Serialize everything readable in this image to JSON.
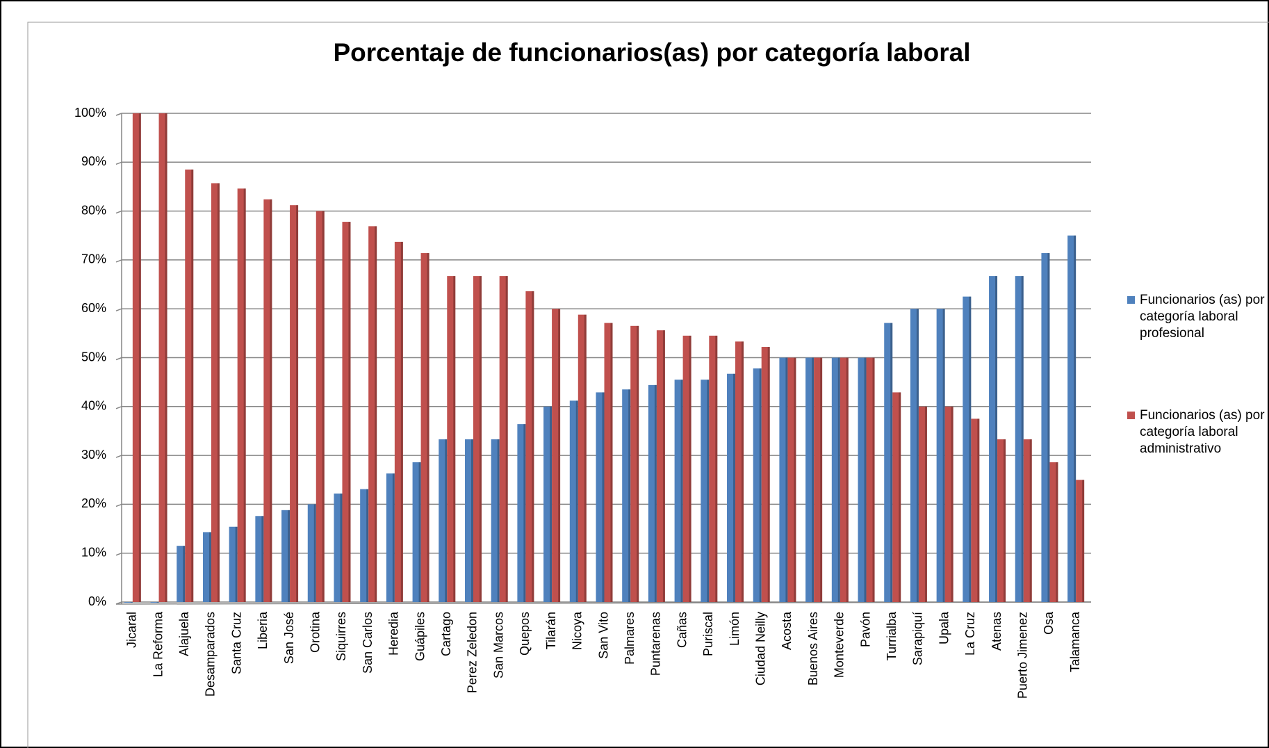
{
  "chart_data": {
    "type": "bar",
    "title": "Porcentaje de funcionarios(as) por categoría laboral",
    "categories": [
      "Jicaral",
      "La Reforma",
      "Alajuela",
      "Desamparados",
      "Santa Cruz",
      "Liberia",
      "San José",
      "Orotina",
      "Siquirres",
      "San Carlos",
      "Heredia",
      "Guápiles",
      "Cartago",
      "Perez Zeledon",
      "San Marcos",
      "Quepos",
      "Tilarán",
      "Nicoya",
      "San Vito",
      "Palmares",
      "Puntarenas",
      "Cañas",
      "Puriscal",
      "Limón",
      "Ciudad Neilly",
      "Acosta",
      "Buenos Aires",
      "Monteverde",
      "Pavón",
      "Turrialba",
      "Sarapiquí",
      "Upala",
      "La Cruz",
      "Atenas",
      "Puerto Jimenez",
      "Osa",
      "Talamanca"
    ],
    "series": [
      {
        "name": "Funcionarios (as) por categoría laboral profesional",
        "color": "#4f81bd",
        "values": [
          0,
          0,
          11.5,
          14.3,
          15.4,
          17.6,
          18.8,
          20,
          22.2,
          23.1,
          26.3,
          28.6,
          33.3,
          33.3,
          33.3,
          36.4,
          40,
          41.2,
          42.9,
          43.5,
          44.4,
          45.5,
          45.5,
          46.7,
          47.8,
          50,
          50,
          50,
          50,
          57.1,
          60,
          60,
          62.5,
          66.7,
          66.7,
          71.4,
          75
        ]
      },
      {
        "name": "Funcionarios (as) por categoría laboral administrativo",
        "color": "#c0504d",
        "values": [
          100,
          100,
          88.5,
          85.7,
          84.6,
          82.4,
          81.2,
          80,
          77.8,
          76.9,
          73.7,
          71.4,
          66.7,
          66.7,
          66.7,
          63.6,
          60,
          58.8,
          57.1,
          56.5,
          55.6,
          54.5,
          54.5,
          53.3,
          52.2,
          50,
          50,
          50,
          50,
          42.9,
          40,
          40,
          37.5,
          33.3,
          33.3,
          28.6,
          25
        ]
      }
    ],
    "ylim": [
      0,
      100
    ],
    "yticks": [
      {
        "value": 0,
        "label": "0%"
      },
      {
        "value": 10,
        "label": "10%"
      },
      {
        "value": 20,
        "label": "20%"
      },
      {
        "value": 30,
        "label": "30%"
      },
      {
        "value": 40,
        "label": "40%"
      },
      {
        "value": 50,
        "label": "50%"
      },
      {
        "value": 60,
        "label": "60%"
      },
      {
        "value": 70,
        "label": "70%"
      },
      {
        "value": 80,
        "label": "80%"
      },
      {
        "value": 90,
        "label": "90%"
      },
      {
        "value": 100,
        "label": "100%"
      }
    ],
    "grid": true,
    "legend": "right"
  }
}
